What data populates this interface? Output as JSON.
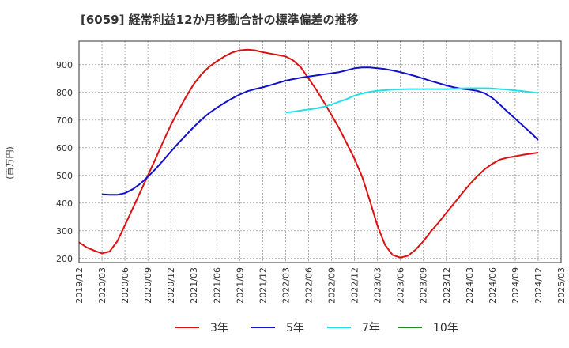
{
  "chart_data": {
    "type": "line",
    "title": "[6059]  経常利益12か月移動合計の標準偏差の推移",
    "ylabel": "(百万円)",
    "xlabel": "",
    "ylim": [
      185,
      985
    ],
    "xlim": [
      "2019-12",
      "2025-03"
    ],
    "yticks": [
      200,
      300,
      400,
      500,
      600,
      700,
      800,
      900
    ],
    "xticks": [
      "2019/12",
      "2020/03",
      "2020/06",
      "2020/09",
      "2020/12",
      "2021/03",
      "2021/06",
      "2021/09",
      "2021/12",
      "2022/03",
      "2022/06",
      "2022/09",
      "2022/12",
      "2023/03",
      "2023/06",
      "2023/09",
      "2023/12",
      "2024/03",
      "2024/06",
      "2024/09",
      "2024/12",
      "2025/03"
    ],
    "grid": true,
    "legend_position": "bottom",
    "series": [
      {
        "name": "3年",
        "color": "#dd1111",
        "x": [
          "2019-12",
          "2020-01",
          "2020-02",
          "2020-03",
          "2020-04",
          "2020-05",
          "2020-06",
          "2020-07",
          "2020-08",
          "2020-09",
          "2020-10",
          "2020-11",
          "2020-12",
          "2021-01",
          "2021-02",
          "2021-03",
          "2021-04",
          "2021-05",
          "2021-06",
          "2021-07",
          "2021-08",
          "2021-09",
          "2021-10",
          "2021-11",
          "2021-12",
          "2022-01",
          "2022-02",
          "2022-03",
          "2022-04",
          "2022-05",
          "2022-06",
          "2022-07",
          "2022-08",
          "2022-09",
          "2022-10",
          "2022-11",
          "2022-12",
          "2023-01",
          "2023-02",
          "2023-03",
          "2023-04",
          "2023-05",
          "2023-06",
          "2023-07",
          "2023-08",
          "2023-09",
          "2023-10",
          "2023-11",
          "2023-12",
          "2024-01",
          "2024-02",
          "2024-03",
          "2024-04",
          "2024-05",
          "2024-06",
          "2024-07",
          "2024-08",
          "2024-09",
          "2024-10",
          "2024-11",
          "2024-12"
        ],
        "values": [
          258,
          240,
          228,
          218,
          225,
          262,
          320,
          380,
          440,
          500,
          560,
          622,
          682,
          735,
          785,
          830,
          865,
          892,
          912,
          930,
          944,
          952,
          954,
          952,
          945,
          940,
          935,
          930,
          915,
          890,
          850,
          810,
          765,
          718,
          670,
          615,
          560,
          495,
          410,
          318,
          248,
          212,
          203,
          210,
          232,
          262,
          298,
          330,
          365,
          398,
          433,
          466,
          496,
          522,
          542,
          557,
          564,
          569,
          574,
          578,
          582
        ]
      },
      {
        "name": "5年",
        "color": "#1111cc",
        "x": [
          "2020-03",
          "2020-04",
          "2020-05",
          "2020-06",
          "2020-07",
          "2020-08",
          "2020-09",
          "2020-10",
          "2020-11",
          "2020-12",
          "2021-01",
          "2021-02",
          "2021-03",
          "2021-04",
          "2021-05",
          "2021-06",
          "2021-07",
          "2021-08",
          "2021-09",
          "2021-10",
          "2021-11",
          "2021-12",
          "2022-01",
          "2022-02",
          "2022-03",
          "2022-04",
          "2022-05",
          "2022-06",
          "2022-07",
          "2022-08",
          "2022-09",
          "2022-10",
          "2022-11",
          "2022-12",
          "2023-01",
          "2023-02",
          "2023-03",
          "2023-04",
          "2023-05",
          "2023-06",
          "2023-07",
          "2023-08",
          "2023-09",
          "2023-10",
          "2023-11",
          "2023-12",
          "2024-01",
          "2024-02",
          "2024-03",
          "2024-04",
          "2024-05",
          "2024-06",
          "2024-07",
          "2024-08",
          "2024-09",
          "2024-10",
          "2024-11",
          "2024-12"
        ],
        "values": [
          432,
          430,
          430,
          436,
          450,
          470,
          495,
          523,
          554,
          586,
          617,
          646,
          675,
          702,
          725,
          744,
          762,
          778,
          792,
          804,
          812,
          818,
          826,
          834,
          842,
          848,
          853,
          857,
          861,
          865,
          869,
          873,
          880,
          887,
          890,
          890,
          887,
          884,
          879,
          873,
          866,
          858,
          850,
          841,
          833,
          825,
          818,
          813,
          810,
          806,
          797,
          780,
          756,
          730,
          705,
          680,
          655,
          628
        ]
      },
      {
        "name": "7年",
        "color": "#22e0e8",
        "x": [
          "2022-03",
          "2022-04",
          "2022-05",
          "2022-06",
          "2022-07",
          "2022-08",
          "2022-09",
          "2022-10",
          "2022-11",
          "2022-12",
          "2023-01",
          "2023-02",
          "2023-03",
          "2023-04",
          "2023-05",
          "2023-06",
          "2023-07",
          "2023-08",
          "2023-09",
          "2023-10",
          "2023-11",
          "2023-12",
          "2024-01",
          "2024-02",
          "2024-03",
          "2024-04",
          "2024-05",
          "2024-06",
          "2024-07",
          "2024-08",
          "2024-09",
          "2024-10",
          "2024-11",
          "2024-12"
        ],
        "values": [
          727,
          730,
          734,
          738,
          742,
          748,
          756,
          766,
          776,
          788,
          796,
          802,
          806,
          808,
          810,
          811,
          812,
          812,
          812,
          812,
          812,
          812,
          813,
          814,
          815,
          815,
          815,
          814,
          812,
          810,
          807,
          804,
          801,
          798
        ]
      },
      {
        "name": "10年",
        "color": "#228822",
        "x": [],
        "values": []
      }
    ]
  }
}
